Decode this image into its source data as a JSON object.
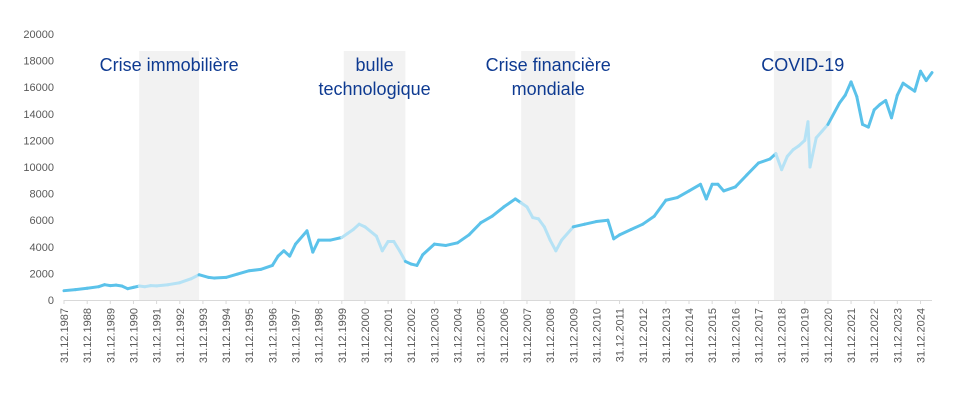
{
  "chart_data": {
    "type": "line",
    "title": "",
    "xlabel": "",
    "ylabel": "",
    "ylim": [
      0,
      20000
    ],
    "yticks": [
      "0",
      "2000",
      "4000",
      "6000",
      "8000",
      "10000",
      "12000",
      "14000",
      "16000",
      "18000",
      "20000"
    ],
    "xlim": [
      "1987-12-31",
      "2025-06-30"
    ],
    "xticks": [
      "31.12.1987",
      "31.12.1988",
      "31.12.1989",
      "31.12.1990",
      "31.12.1991",
      "31.12.1992",
      "31.12.1993",
      "31.12.1994",
      "31.12.1995",
      "31.12.1996",
      "31.12.1997",
      "31.12.1998",
      "31.12.1999",
      "31.12.2000",
      "31.12.2001",
      "31.12.2002",
      "31.12.2003",
      "31.12.2004",
      "31.12.2005",
      "31.12.2006",
      "31.12.2007",
      "31.12.2008",
      "31.12.2009",
      "31.12.2010",
      "31.12.2011",
      "31.12.2012",
      "31.12.2013",
      "31.12.2014",
      "31.12.2015",
      "31.12.2016",
      "31.12.2017",
      "31.12.2018",
      "31.12.2019",
      "31.12.2020",
      "31.12.2021",
      "31.12.2022",
      "31.12.2023",
      "31.12.2024"
    ],
    "grid": false,
    "line_color": "#5bc2ea",
    "crisis_line_color": "#b5e2f5",
    "shade_color": "#f2f2f2",
    "annotation_color": "#0e3a91",
    "series": [
      {
        "points": [
          [
            "1987-12-31",
            700
          ],
          [
            "1988-06-30",
            780
          ],
          [
            "1988-12-31",
            880
          ],
          [
            "1989-06-30",
            1000
          ],
          [
            "1989-09-30",
            1150
          ],
          [
            "1989-12-31",
            1080
          ],
          [
            "1990-03-31",
            1120
          ],
          [
            "1990-06-30",
            1050
          ],
          [
            "1990-09-30",
            850
          ],
          [
            "1990-12-31",
            950
          ],
          [
            "1991-03-31",
            1050
          ],
          [
            "1991-06-30",
            1000
          ],
          [
            "1991-09-30",
            1080
          ],
          [
            "1991-12-31",
            1060
          ],
          [
            "1992-06-30",
            1150
          ],
          [
            "1992-12-31",
            1300
          ],
          [
            "1993-06-30",
            1600
          ],
          [
            "1993-10-31",
            1900
          ],
          [
            "1994-03-31",
            1700
          ],
          [
            "1994-06-30",
            1650
          ],
          [
            "1994-12-31",
            1700
          ],
          [
            "1995-06-30",
            1950
          ],
          [
            "1995-12-31",
            2200
          ],
          [
            "1996-06-30",
            2300
          ],
          [
            "1996-12-31",
            2600
          ],
          [
            "1997-03-31",
            3300
          ],
          [
            "1997-06-30",
            3700
          ],
          [
            "1997-09-30",
            3300
          ],
          [
            "1997-12-31",
            4200
          ],
          [
            "1998-06-30",
            5200
          ],
          [
            "1998-09-30",
            3600
          ],
          [
            "1998-12-31",
            4500
          ],
          [
            "1999-06-30",
            4500
          ],
          [
            "1999-12-31",
            4700
          ],
          [
            "2000-03-31",
            5000
          ],
          [
            "2000-06-30",
            5300
          ],
          [
            "2000-09-30",
            5700
          ],
          [
            "2000-12-31",
            5500
          ],
          [
            "2001-06-30",
            4800
          ],
          [
            "2001-09-30",
            3700
          ],
          [
            "2001-12-31",
            4400
          ],
          [
            "2002-03-31",
            4400
          ],
          [
            "2002-06-30",
            3700
          ],
          [
            "2002-09-30",
            2900
          ],
          [
            "2002-12-31",
            2700
          ],
          [
            "2003-03-31",
            2600
          ],
          [
            "2003-06-30",
            3400
          ],
          [
            "2003-12-31",
            4200
          ],
          [
            "2004-06-30",
            4100
          ],
          [
            "2004-12-31",
            4300
          ],
          [
            "2005-06-30",
            4900
          ],
          [
            "2005-12-31",
            5800
          ],
          [
            "2006-06-30",
            6300
          ],
          [
            "2006-12-31",
            7000
          ],
          [
            "2007-06-30",
            7600
          ],
          [
            "2007-09-30",
            7300
          ],
          [
            "2007-12-31",
            7000
          ],
          [
            "2008-03-31",
            6200
          ],
          [
            "2008-06-30",
            6100
          ],
          [
            "2008-09-30",
            5500
          ],
          [
            "2008-12-31",
            4500
          ],
          [
            "2009-03-31",
            3700
          ],
          [
            "2009-06-30",
            4500
          ],
          [
            "2009-12-31",
            5500
          ],
          [
            "2010-06-30",
            5700
          ],
          [
            "2010-12-31",
            5900
          ],
          [
            "2011-06-30",
            6000
          ],
          [
            "2011-09-30",
            4600
          ],
          [
            "2011-12-31",
            4900
          ],
          [
            "2012-06-30",
            5300
          ],
          [
            "2012-12-31",
            5700
          ],
          [
            "2013-06-30",
            6300
          ],
          [
            "2013-12-31",
            7500
          ],
          [
            "2014-06-30",
            7700
          ],
          [
            "2014-12-31",
            8200
          ],
          [
            "2015-06-30",
            8700
          ],
          [
            "2015-09-30",
            7600
          ],
          [
            "2015-12-31",
            8700
          ],
          [
            "2016-03-31",
            8700
          ],
          [
            "2016-06-30",
            8200
          ],
          [
            "2016-12-31",
            8500
          ],
          [
            "2017-06-30",
            9400
          ],
          [
            "2017-12-31",
            10300
          ],
          [
            "2018-06-30",
            10600
          ],
          [
            "2018-09-30",
            11000
          ],
          [
            "2018-12-31",
            9800
          ],
          [
            "2019-03-31",
            10800
          ],
          [
            "2019-06-30",
            11300
          ],
          [
            "2019-09-30",
            11600
          ],
          [
            "2019-12-31",
            12000
          ],
          [
            "2020-02-20",
            13400
          ],
          [
            "2020-03-23",
            10000
          ],
          [
            "2020-06-30",
            12200
          ],
          [
            "2020-09-30",
            12700
          ],
          [
            "2020-12-31",
            13200
          ],
          [
            "2021-06-30",
            14800
          ],
          [
            "2021-09-30",
            15400
          ],
          [
            "2021-12-31",
            16400
          ],
          [
            "2022-03-31",
            15300
          ],
          [
            "2022-06-30",
            13200
          ],
          [
            "2022-09-30",
            13000
          ],
          [
            "2022-12-31",
            14300
          ],
          [
            "2023-03-31",
            14700
          ],
          [
            "2023-06-30",
            15000
          ],
          [
            "2023-09-30",
            13700
          ],
          [
            "2023-12-31",
            15400
          ],
          [
            "2024-03-31",
            16300
          ],
          [
            "2024-06-30",
            16000
          ],
          [
            "2024-09-30",
            15700
          ],
          [
            "2024-12-31",
            17200
          ],
          [
            "2025-03-31",
            16500
          ],
          [
            "2025-06-30",
            17100
          ]
        ]
      }
    ],
    "shaded_periods": [
      {
        "label": "Crise immobilière",
        "start": "1991-03-31",
        "end": "1993-10-31"
      },
      {
        "label": "bulle technologique",
        "start": "2000-01-31",
        "end": "2002-09-30"
      },
      {
        "label": "Crise financière mondiale",
        "start": "2007-09-30",
        "end": "2010-01-31"
      },
      {
        "label": "COVID-19",
        "start": "2018-08-31",
        "end": "2021-02-28"
      }
    ],
    "annotations": [
      {
        "lines": [
          "Crise immobilière"
        ]
      },
      {
        "lines": [
          "bulle",
          "technologique"
        ]
      },
      {
        "lines": [
          "Crise financière",
          "mondiale"
        ]
      },
      {
        "lines": [
          "COVID-19"
        ]
      }
    ]
  }
}
